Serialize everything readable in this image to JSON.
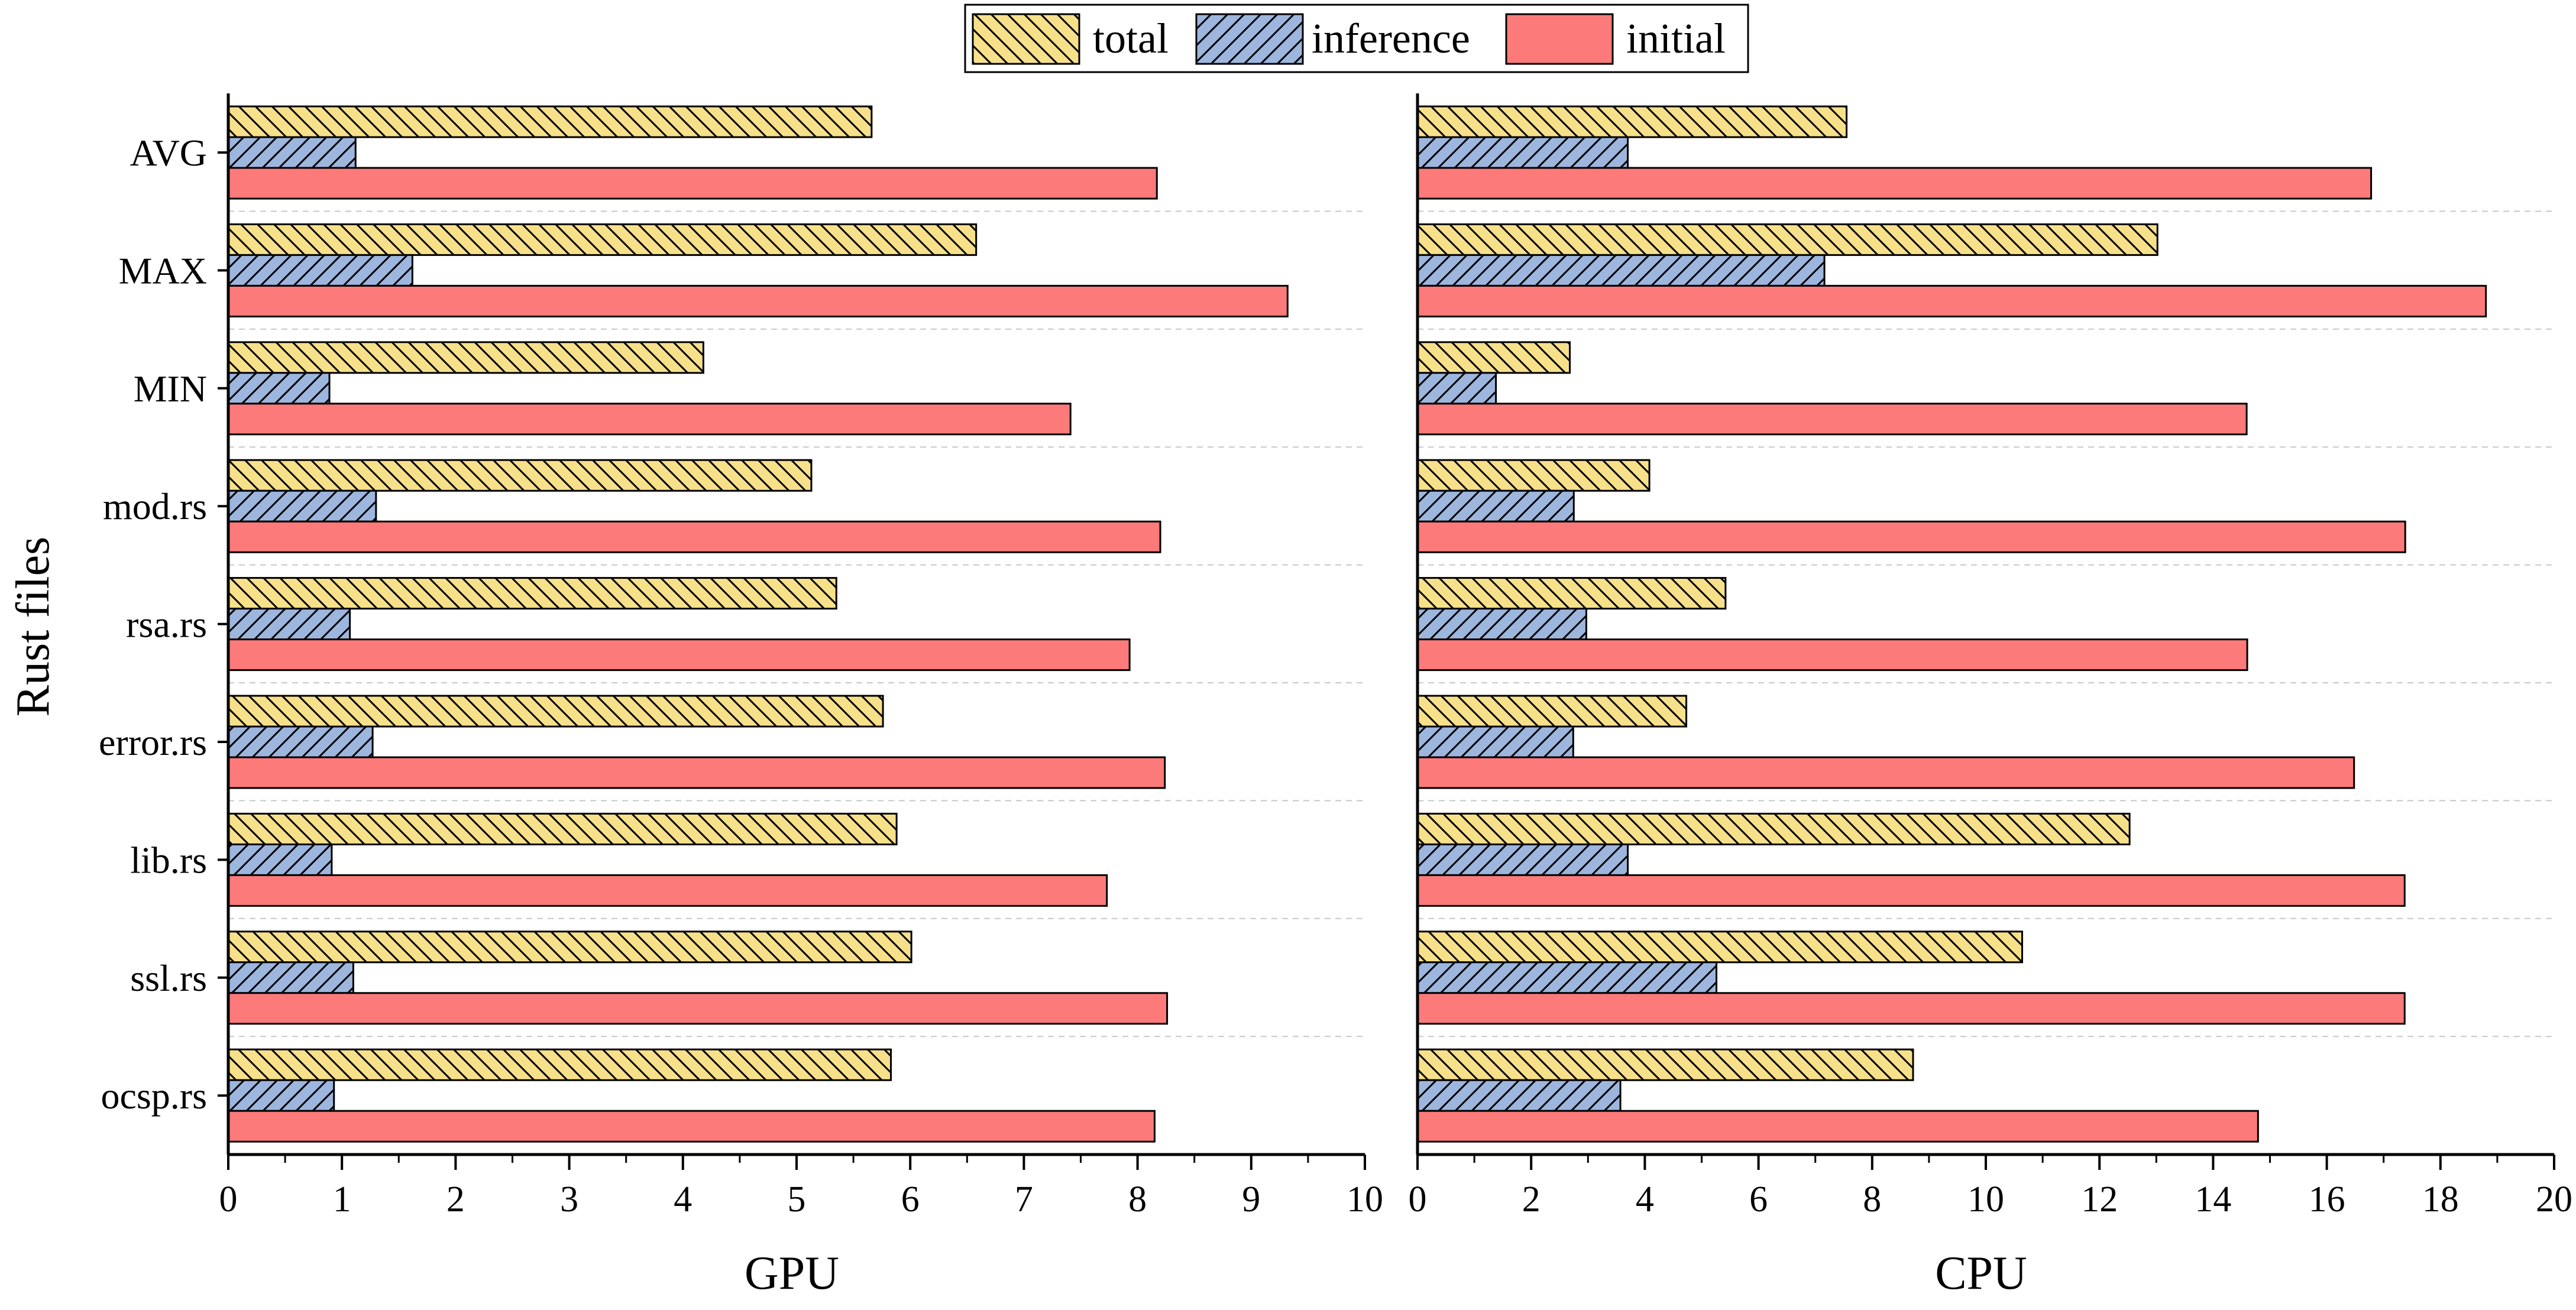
{
  "legend": [
    {
      "key": "total",
      "label": "total",
      "fill": "#f7e08a",
      "pattern": "backslash"
    },
    {
      "key": "inference",
      "label": "inference",
      "fill": "#9db6de",
      "pattern": "slash"
    },
    {
      "key": "initial",
      "label": "initial",
      "fill": "#fc7a7a",
      "pattern": "none"
    }
  ],
  "shared_ylabel": "Rust files",
  "chart_data": [
    {
      "type": "bar",
      "orientation": "horizontal",
      "xlabel": "GPU",
      "ylabel": "Rust files",
      "xlim": [
        0,
        10
      ],
      "xticks": [
        0,
        1,
        2,
        3,
        4,
        5,
        6,
        7,
        8,
        9,
        10
      ],
      "categories": [
        "AVG",
        "MAX",
        "MIN",
        "mod.rs",
        "rsa.rs",
        "error.rs",
        "lib.rs",
        "ssl.rs",
        "ocsp.rs"
      ],
      "series": [
        {
          "name": "total",
          "values": [
            5.66,
            6.58,
            4.18,
            5.13,
            5.35,
            5.76,
            5.88,
            6.01,
            5.83
          ]
        },
        {
          "name": "inference",
          "values": [
            1.12,
            1.62,
            0.89,
            1.3,
            1.07,
            1.27,
            0.91,
            1.1,
            0.93
          ]
        },
        {
          "name": "initial",
          "values": [
            8.17,
            9.32,
            7.41,
            8.2,
            7.93,
            8.24,
            7.73,
            8.26,
            8.15
          ]
        }
      ],
      "grid": "horizontal-dashed-between-categories"
    },
    {
      "type": "bar",
      "orientation": "horizontal",
      "xlabel": "CPU",
      "ylabel": "",
      "xlim": [
        0,
        20
      ],
      "xticks": [
        0,
        2,
        4,
        6,
        8,
        10,
        12,
        14,
        16,
        18,
        20
      ],
      "categories": [
        "AVG",
        "MAX",
        "MIN",
        "mod.rs",
        "rsa.rs",
        "error.rs",
        "lib.rs",
        "ssl.rs",
        "ocsp.rs"
      ],
      "series": [
        {
          "name": "total",
          "values": [
            7.55,
            13.02,
            2.68,
            4.08,
            5.42,
            4.73,
            12.53,
            10.64,
            8.72
          ]
        },
        {
          "name": "inference",
          "values": [
            3.7,
            7.16,
            1.38,
            2.75,
            2.97,
            2.74,
            3.7,
            5.26,
            3.57
          ]
        },
        {
          "name": "initial",
          "values": [
            16.78,
            18.8,
            14.59,
            17.38,
            14.6,
            16.48,
            17.37,
            17.37,
            14.79
          ]
        }
      ],
      "grid": "horizontal-dashed-between-categories"
    }
  ]
}
